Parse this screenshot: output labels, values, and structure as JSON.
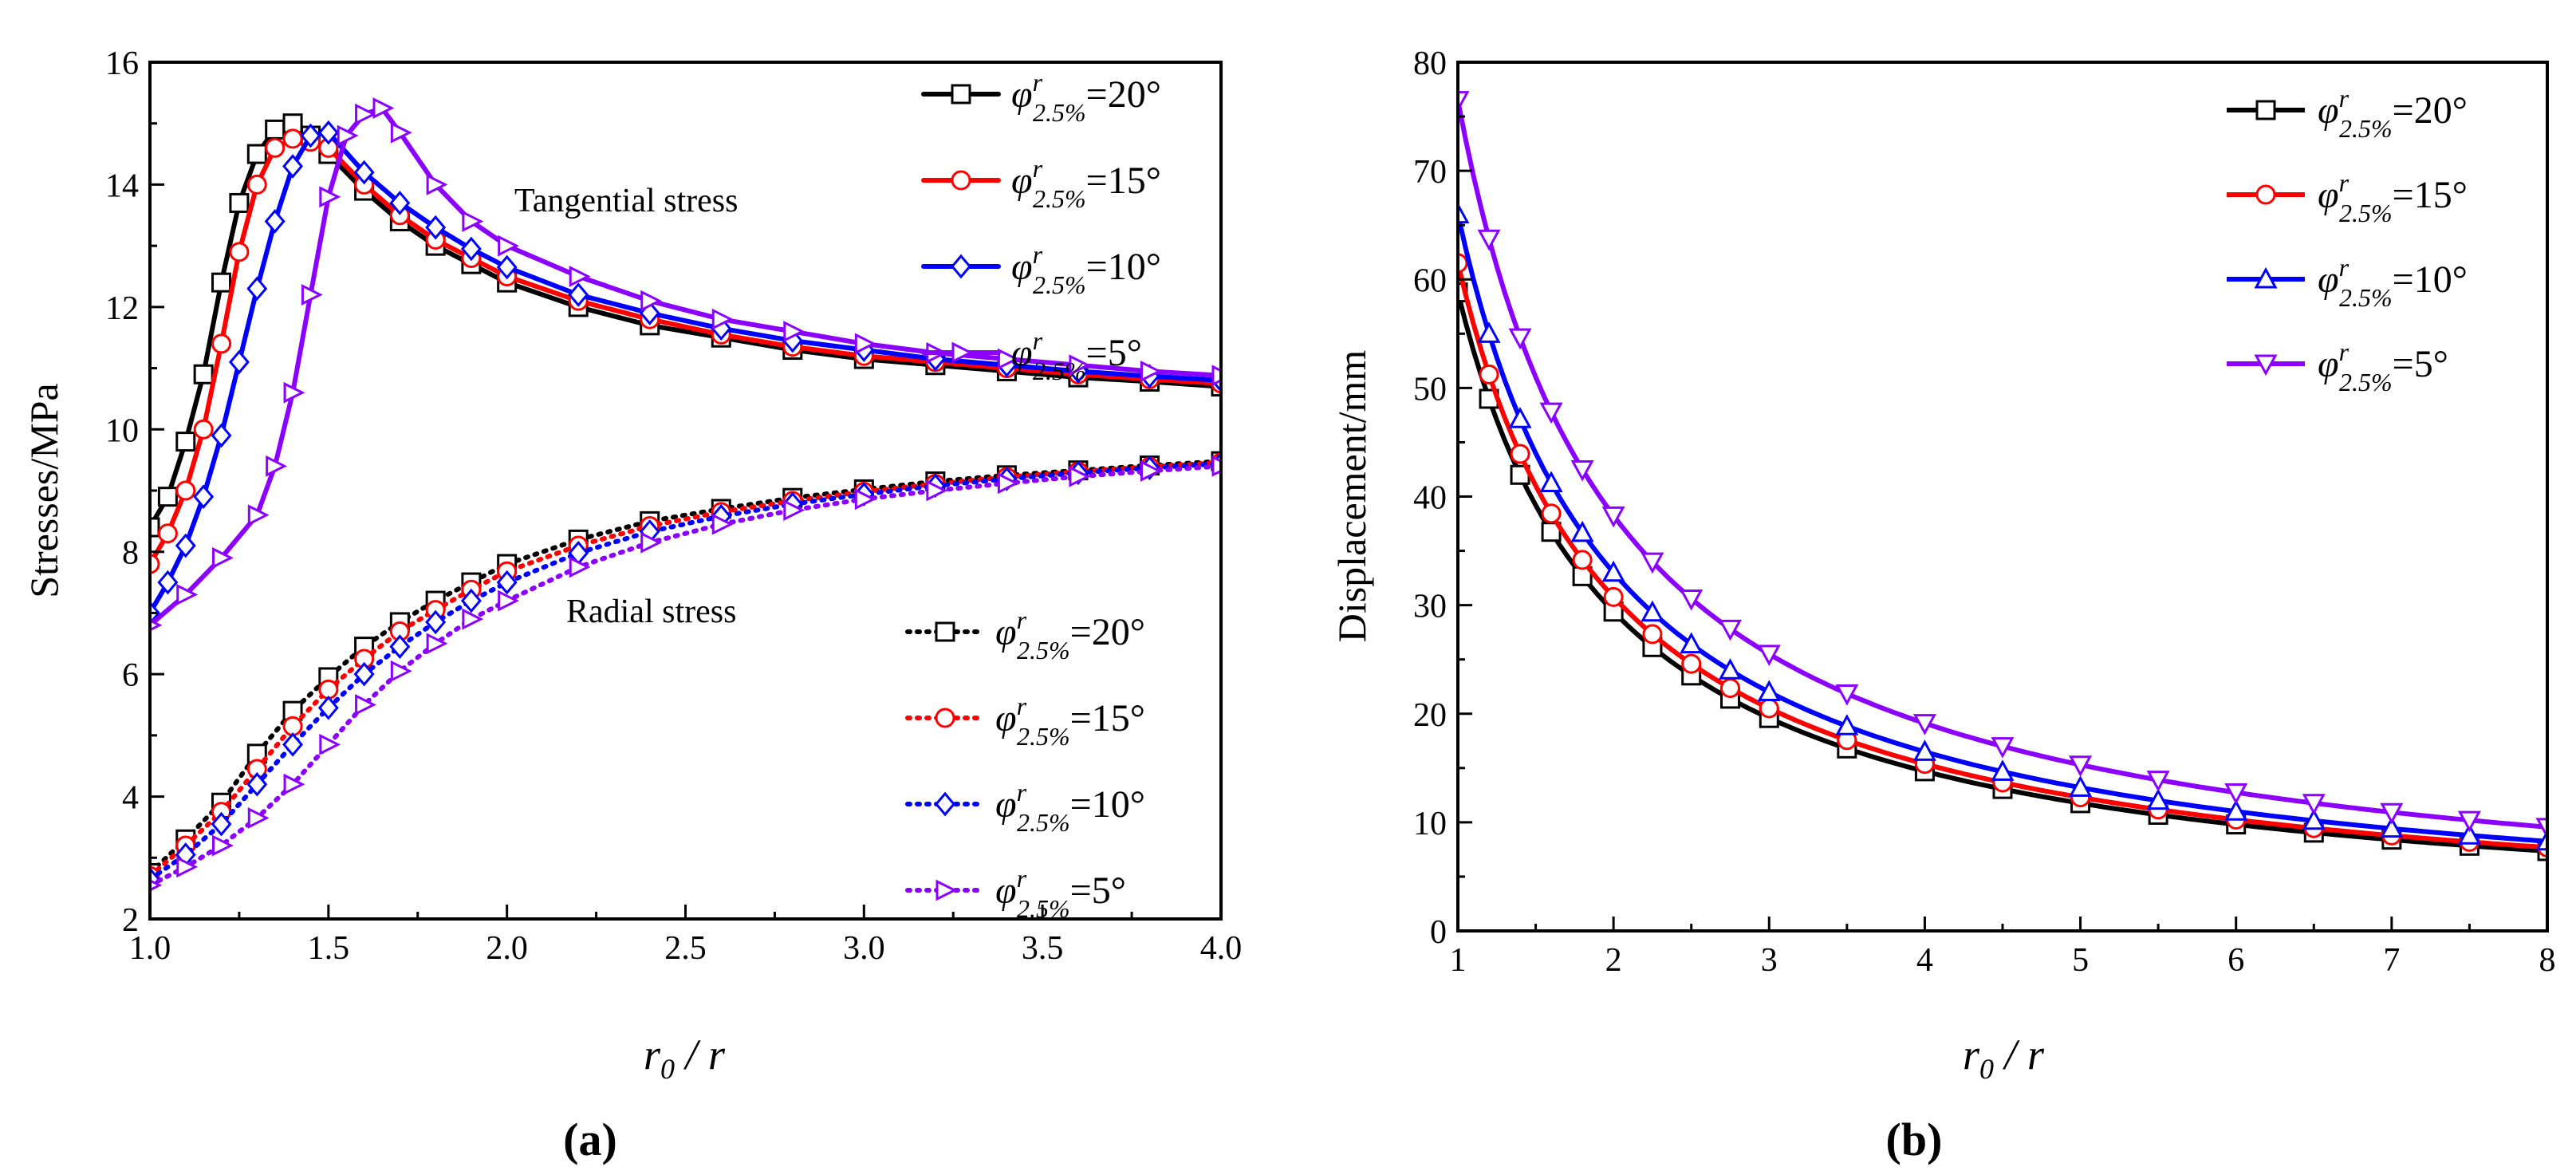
{
  "chart_data": [
    {
      "type": "line",
      "panel_label": "(a)",
      "xlabel": "r0 / r",
      "ylabel": "Stresses/MPa",
      "xlim": [
        1.0,
        4.0
      ],
      "ylim": [
        2,
        16
      ],
      "xticks": [
        1.0,
        1.5,
        2.0,
        2.5,
        3.0,
        3.5,
        4.0
      ],
      "yticks": [
        2,
        4,
        6,
        8,
        10,
        12,
        14,
        16
      ],
      "grid": false,
      "annotations": [
        "Tangential stress",
        "Radial stress"
      ],
      "legend_groups": [
        {
          "title": "Tangential stress",
          "position": "top-right",
          "line_style": "solid"
        },
        {
          "title": "Radial stress",
          "position": "middle-right",
          "line_style": "dotted"
        }
      ],
      "series": [
        {
          "name": "φr2.5%=20°",
          "group": "Tangential stress",
          "color": "#000000",
          "marker": "square",
          "x": [
            1.0,
            1.05,
            1.1,
            1.15,
            1.2,
            1.25,
            1.3,
            1.35,
            1.4,
            1.45,
            1.5,
            1.6,
            1.7,
            1.8,
            1.9,
            2.0,
            2.2,
            2.4,
            2.6,
            2.8,
            3.0,
            3.2,
            3.4,
            3.6,
            3.8,
            4.0
          ],
          "y": [
            8.4,
            8.9,
            9.8,
            10.9,
            12.4,
            13.7,
            14.5,
            14.9,
            15.0,
            14.8,
            14.5,
            13.9,
            13.4,
            13.0,
            12.7,
            12.4,
            12.0,
            11.7,
            11.5,
            11.3,
            11.15,
            11.05,
            10.95,
            10.85,
            10.78,
            10.7
          ]
        },
        {
          "name": "φr2.5%=15°",
          "group": "Tangential stress",
          "color": "#ff0000",
          "marker": "circle",
          "x": [
            1.0,
            1.05,
            1.1,
            1.15,
            1.2,
            1.25,
            1.3,
            1.35,
            1.4,
            1.45,
            1.5,
            1.6,
            1.7,
            1.8,
            1.9,
            2.0,
            2.2,
            2.4,
            2.6,
            2.8,
            3.0,
            3.2,
            3.4,
            3.6,
            3.8,
            4.0
          ],
          "y": [
            7.8,
            8.3,
            9.0,
            10.0,
            11.4,
            12.9,
            14.0,
            14.6,
            14.75,
            14.7,
            14.6,
            14.0,
            13.5,
            13.1,
            12.8,
            12.5,
            12.1,
            11.8,
            11.55,
            11.35,
            11.2,
            11.1,
            11.0,
            10.9,
            10.82,
            10.75
          ]
        },
        {
          "name": "φr2.5%=10°",
          "group": "Tangential stress",
          "color": "#0000ff",
          "marker": "diamond",
          "x": [
            1.0,
            1.05,
            1.1,
            1.15,
            1.2,
            1.25,
            1.3,
            1.35,
            1.4,
            1.45,
            1.5,
            1.6,
            1.7,
            1.8,
            1.9,
            2.0,
            2.2,
            2.4,
            2.6,
            2.8,
            3.0,
            3.2,
            3.4,
            3.6,
            3.8,
            4.0
          ],
          "y": [
            7.0,
            7.5,
            8.1,
            8.9,
            9.9,
            11.1,
            12.3,
            13.4,
            14.3,
            14.8,
            14.85,
            14.2,
            13.7,
            13.3,
            12.95,
            12.65,
            12.2,
            11.9,
            11.65,
            11.45,
            11.3,
            11.15,
            11.05,
            10.95,
            10.87,
            10.8
          ]
        },
        {
          "name": "φr2.5%=5°",
          "group": "Tangential stress",
          "color": "#8b00ff",
          "marker": "triangle-right",
          "x": [
            1.0,
            1.1,
            1.2,
            1.3,
            1.35,
            1.4,
            1.45,
            1.5,
            1.55,
            1.6,
            1.65,
            1.7,
            1.8,
            1.9,
            2.0,
            2.2,
            2.4,
            2.6,
            2.8,
            3.0,
            3.2,
            3.4,
            3.6,
            3.8,
            4.0
          ],
          "y": [
            6.8,
            7.3,
            7.9,
            8.6,
            9.4,
            10.6,
            12.2,
            13.8,
            14.8,
            15.15,
            15.25,
            14.85,
            14.0,
            13.4,
            13.0,
            12.5,
            12.1,
            11.8,
            11.6,
            11.4,
            11.25,
            11.15,
            11.05,
            10.95,
            10.88
          ]
        },
        {
          "name": "φr2.5%=20°",
          "group": "Radial stress",
          "color": "#000000",
          "marker": "square",
          "x": [
            1.0,
            1.1,
            1.2,
            1.3,
            1.4,
            1.5,
            1.6,
            1.7,
            1.8,
            1.9,
            2.0,
            2.2,
            2.4,
            2.6,
            2.8,
            3.0,
            3.2,
            3.4,
            3.6,
            3.8,
            4.0
          ],
          "y": [
            2.75,
            3.3,
            3.9,
            4.7,
            5.4,
            5.95,
            6.45,
            6.85,
            7.2,
            7.5,
            7.8,
            8.2,
            8.5,
            8.7,
            8.88,
            9.02,
            9.15,
            9.25,
            9.33,
            9.41,
            9.48
          ]
        },
        {
          "name": "φr2.5%=15°",
          "group": "Radial stress",
          "color": "#ff0000",
          "marker": "circle",
          "x": [
            1.0,
            1.1,
            1.2,
            1.3,
            1.4,
            1.5,
            1.6,
            1.7,
            1.8,
            1.9,
            2.0,
            2.2,
            2.4,
            2.6,
            2.8,
            3.0,
            3.2,
            3.4,
            3.6,
            3.8,
            4.0
          ],
          "y": [
            2.7,
            3.2,
            3.75,
            4.45,
            5.15,
            5.75,
            6.25,
            6.7,
            7.05,
            7.38,
            7.68,
            8.1,
            8.42,
            8.65,
            8.83,
            8.98,
            9.11,
            9.22,
            9.31,
            9.39,
            9.46
          ]
        },
        {
          "name": "φr2.5%=10°",
          "group": "Radial stress",
          "color": "#0000ff",
          "marker": "diamond",
          "x": [
            1.0,
            1.1,
            1.2,
            1.3,
            1.4,
            1.5,
            1.6,
            1.7,
            1.8,
            1.9,
            2.0,
            2.2,
            2.4,
            2.6,
            2.8,
            3.0,
            3.2,
            3.4,
            3.6,
            3.8,
            4.0
          ],
          "y": [
            2.65,
            3.05,
            3.55,
            4.2,
            4.85,
            5.45,
            6.0,
            6.45,
            6.85,
            7.2,
            7.5,
            7.98,
            8.33,
            8.58,
            8.78,
            8.94,
            9.08,
            9.19,
            9.29,
            9.37,
            9.44
          ]
        },
        {
          "name": "φr2.5%=5°",
          "group": "Radial stress",
          "color": "#8b00ff",
          "marker": "triangle-right",
          "x": [
            1.0,
            1.1,
            1.2,
            1.3,
            1.4,
            1.5,
            1.6,
            1.7,
            1.8,
            1.9,
            2.0,
            2.2,
            2.4,
            2.6,
            2.8,
            3.0,
            3.2,
            3.4,
            3.6,
            3.8,
            4.0
          ],
          "y": [
            2.55,
            2.85,
            3.2,
            3.65,
            4.2,
            4.85,
            5.5,
            6.05,
            6.5,
            6.9,
            7.2,
            7.75,
            8.15,
            8.45,
            8.68,
            8.86,
            9.0,
            9.12,
            9.23,
            9.32,
            9.4
          ]
        }
      ]
    },
    {
      "type": "line",
      "panel_label": "(b)",
      "xlabel": "r0 / r",
      "ylabel": "Displacement/mm",
      "xlim": [
        1,
        8
      ],
      "ylim": [
        0,
        80
      ],
      "xticks": [
        1,
        2,
        3,
        4,
        5,
        6,
        7,
        8
      ],
      "yticks": [
        0,
        10,
        20,
        30,
        40,
        50,
        60,
        70,
        80
      ],
      "grid": false,
      "legend": "top-right",
      "series": [
        {
          "name": "φr2.5%=20°",
          "color": "#000000",
          "marker": "square",
          "base": 58.8
        },
        {
          "name": "φr2.5%=15°",
          "color": "#ff0000",
          "marker": "circle",
          "base": 61.5
        },
        {
          "name": "φr2.5%=10°",
          "color": "#0000ff",
          "marker": "triangle-up",
          "base": 66.0
        },
        {
          "name": "φr2.5%=5°",
          "color": "#8b00ff",
          "marker": "triangle-down",
          "base": 76.5
        }
      ],
      "x": [
        1,
        1.2,
        1.4,
        1.6,
        1.8,
        2,
        2.25,
        2.5,
        2.75,
        3,
        3.5,
        4,
        4.5,
        5,
        5.5,
        6,
        6.5,
        7,
        7.5,
        8
      ],
      "relation": "displacement = base / (r0/r)"
    }
  ],
  "legend_text": {
    "greek": "φ",
    "sup": "r",
    "sub": "2.5%",
    "entries": [
      "=20°",
      "=15°",
      "=10°",
      "=5°"
    ]
  },
  "axis_label_parts": {
    "var": "r",
    "sub": "0",
    "rest": " / r"
  }
}
